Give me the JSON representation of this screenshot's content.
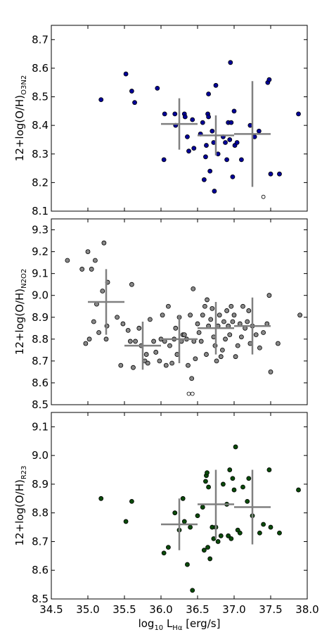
{
  "chart_data": [
    {
      "type": "scatter",
      "id": "panel-o3n2",
      "ylabel_main": "12+log(O/H)",
      "ylabel_sub": "O3N2",
      "xlim": [
        34.5,
        38.0
      ],
      "ylim": [
        8.1,
        8.75
      ],
      "yticks": [
        "8.1",
        "8.2",
        "8.3",
        "8.4",
        "8.5",
        "8.6",
        "8.7"
      ],
      "point_color": "#000099",
      "series": [
        {
          "name": "",
          "points": [
            [
              35.18,
              8.49
            ],
            [
              35.52,
              8.58
            ],
            [
              35.6,
              8.52
            ],
            [
              35.64,
              8.48
            ],
            [
              35.95,
              8.53
            ],
            [
              36.04,
              8.28
            ],
            [
              36.05,
              8.44
            ],
            [
              36.19,
              8.44
            ],
            [
              36.2,
              8.4
            ],
            [
              36.32,
              8.44
            ],
            [
              36.33,
              8.43
            ],
            [
              36.36,
              8.36
            ],
            [
              36.38,
              8.31
            ],
            [
              36.43,
              8.42
            ],
            [
              36.45,
              8.32
            ],
            [
              36.54,
              8.37
            ],
            [
              36.57,
              8.41
            ],
            [
              36.59,
              8.21
            ],
            [
              36.61,
              8.29
            ],
            [
              36.62,
              8.33
            ],
            [
              36.64,
              8.44
            ],
            [
              36.65,
              8.43
            ],
            [
              36.65,
              8.51
            ],
            [
              36.67,
              8.24
            ],
            [
              36.7,
              8.38
            ],
            [
              36.72,
              8.34
            ],
            [
              36.73,
              8.17
            ],
            [
              36.75,
              8.54
            ],
            [
              36.78,
              8.3
            ],
            [
              36.85,
              8.36
            ],
            [
              36.88,
              8.34
            ],
            [
              36.9,
              8.28
            ],
            [
              36.92,
              8.41
            ],
            [
              36.94,
              8.35
            ],
            [
              36.95,
              8.62
            ],
            [
              36.96,
              8.41
            ],
            [
              36.98,
              8.22
            ],
            [
              37.0,
              8.45
            ],
            [
              37.01,
              8.33
            ],
            [
              37.04,
              8.34
            ],
            [
              37.1,
              8.28
            ],
            [
              37.22,
              8.4
            ],
            [
              37.28,
              8.36
            ],
            [
              37.34,
              8.38
            ],
            [
              37.46,
              8.55
            ],
            [
              37.48,
              8.56
            ],
            [
              37.5,
              8.23
            ],
            [
              37.62,
              8.23
            ],
            [
              37.88,
              8.44
            ]
          ]
        }
      ],
      "open_points": [
        [
          37.4,
          8.15
        ]
      ],
      "errorbars": [
        {
          "x": 36.25,
          "y": 8.405,
          "xerr": 0.25,
          "yerr": 0.09
        },
        {
          "x": 36.75,
          "y": 8.365,
          "xerr": 0.25,
          "yerr": 0.07
        },
        {
          "x": 37.25,
          "y": 8.37,
          "xerr": 0.25,
          "yerr": 0.185
        }
      ]
    },
    {
      "type": "scatter",
      "id": "panel-n2o2",
      "ylabel_main": "12+log(O/H)",
      "ylabel_sub": "N2O2",
      "xlim": [
        34.5,
        38.0
      ],
      "ylim": [
        8.5,
        9.35
      ],
      "yticks": [
        "8.5",
        "8.6",
        "8.7",
        "8.8",
        "8.9",
        "9.0",
        "9.1",
        "9.2",
        "9.3"
      ],
      "point_color": "#888888",
      "series": [
        {
          "name": "",
          "points": [
            [
              34.72,
              9.16
            ],
            [
              34.92,
              9.12
            ],
            [
              34.97,
              8.78
            ],
            [
              35.0,
              9.2
            ],
            [
              35.02,
              8.8
            ],
            [
              35.05,
              9.12
            ],
            [
              35.08,
              8.88
            ],
            [
              35.1,
              9.16
            ],
            [
              35.12,
              8.96
            ],
            [
              35.15,
              8.83
            ],
            [
              35.2,
              9.02
            ],
            [
              35.22,
              9.24
            ],
            [
              35.25,
              8.8
            ],
            [
              35.26,
              8.86
            ],
            [
              35.27,
              9.06
            ],
            [
              35.4,
              8.9
            ],
            [
              35.45,
              8.68
            ],
            [
              35.48,
              8.87
            ],
            [
              35.55,
              8.84
            ],
            [
              35.58,
              8.79
            ],
            [
              35.6,
              9.05
            ],
            [
              35.62,
              8.67
            ],
            [
              35.65,
              8.79
            ],
            [
              35.7,
              8.85
            ],
            [
              35.73,
              8.77
            ],
            [
              35.78,
              8.7
            ],
            [
              35.8,
              8.73
            ],
            [
              35.82,
              8.69
            ],
            [
              35.85,
              8.89
            ],
            [
              35.9,
              8.79
            ],
            [
              35.93,
              8.74
            ],
            [
              35.98,
              8.7
            ],
            [
              36.0,
              8.8
            ],
            [
              36.02,
              8.91
            ],
            [
              36.05,
              8.79
            ],
            [
              36.07,
              8.68
            ],
            [
              36.1,
              8.95
            ],
            [
              36.12,
              8.77
            ],
            [
              36.15,
              8.69
            ],
            [
              36.18,
              8.8
            ],
            [
              36.2,
              8.85
            ],
            [
              36.22,
              8.73
            ],
            [
              36.25,
              8.9
            ],
            [
              36.28,
              8.79
            ],
            [
              36.3,
              8.82
            ],
            [
              36.32,
              8.82
            ],
            [
              36.35,
              8.8
            ],
            [
              36.37,
              8.68
            ],
            [
              36.4,
              8.91
            ],
            [
              36.42,
              8.62
            ],
            [
              36.44,
              9.03
            ],
            [
              36.45,
              8.79
            ],
            [
              36.47,
              8.71
            ],
            [
              36.5,
              8.87
            ],
            [
              36.52,
              8.83
            ],
            [
              36.55,
              8.79
            ],
            [
              36.57,
              8.91
            ],
            [
              36.6,
              8.95
            ],
            [
              36.62,
              8.73
            ],
            [
              36.63,
              8.98
            ],
            [
              36.65,
              8.86
            ],
            [
              36.68,
              8.89
            ],
            [
              36.7,
              8.94
            ],
            [
              36.72,
              8.81
            ],
            [
              36.74,
              8.77
            ],
            [
              36.76,
              8.7
            ],
            [
              36.78,
              8.86
            ],
            [
              36.8,
              8.91
            ],
            [
              36.82,
              8.72
            ],
            [
              36.84,
              8.75
            ],
            [
              36.86,
              8.88
            ],
            [
              36.88,
              8.8
            ],
            [
              36.9,
              8.93
            ],
            [
              36.92,
              8.86
            ],
            [
              36.94,
              8.82
            ],
            [
              36.96,
              8.95
            ],
            [
              36.98,
              8.88
            ],
            [
              37.0,
              8.91
            ],
            [
              37.02,
              8.72
            ],
            [
              37.05,
              8.77
            ],
            [
              37.08,
              8.87
            ],
            [
              37.1,
              8.81
            ],
            [
              37.12,
              8.95
            ],
            [
              37.15,
              8.85
            ],
            [
              37.18,
              8.88
            ],
            [
              37.2,
              8.93
            ],
            [
              37.22,
              8.78
            ],
            [
              37.25,
              8.86
            ],
            [
              37.3,
              8.82
            ],
            [
              37.35,
              8.76
            ],
            [
              37.4,
              8.83
            ],
            [
              37.45,
              8.87
            ],
            [
              37.48,
              9.0
            ],
            [
              37.5,
              8.65
            ],
            [
              37.6,
              8.78
            ],
            [
              37.9,
              8.91
            ]
          ]
        }
      ],
      "open_points": [
        [
          36.38,
          8.55
        ],
        [
          36.43,
          8.55
        ]
      ],
      "errorbars": [
        {
          "x": 35.25,
          "y": 8.97,
          "xerr": 0.25,
          "yerr": 0.15
        },
        {
          "x": 35.75,
          "y": 8.77,
          "xerr": 0.25,
          "yerr": 0.11
        },
        {
          "x": 36.25,
          "y": 8.8,
          "xerr": 0.25,
          "yerr": 0.11
        },
        {
          "x": 36.75,
          "y": 8.85,
          "xerr": 0.25,
          "yerr": 0.12
        },
        {
          "x": 37.25,
          "y": 8.86,
          "xerr": 0.25,
          "yerr": 0.13
        }
      ]
    },
    {
      "type": "scatter",
      "id": "panel-r23",
      "ylabel_main": "12+log(O/H)",
      "ylabel_sub": "R23",
      "xlabel_main": "log",
      "xlabel_sub1": "10",
      "xlabel_mid": " L",
      "xlabel_sub2": "Hα",
      "xlabel_tail": " [erg/s]",
      "xlim": [
        34.5,
        38.0
      ],
      "ylim": [
        8.5,
        9.15
      ],
      "xticks": [
        "34.5",
        "35.0",
        "35.5",
        "36.0",
        "36.5",
        "37.0",
        "37.5",
        "38.0"
      ],
      "yticks": [
        "8.5",
        "8.6",
        "8.7",
        "8.8",
        "8.9",
        "9.0",
        "9.1"
      ],
      "point_color": "#0a4a0a",
      "series": [
        {
          "name": "",
          "points": [
            [
              35.18,
              8.85
            ],
            [
              35.52,
              8.77
            ],
            [
              35.6,
              8.84
            ],
            [
              36.04,
              8.66
            ],
            [
              36.1,
              8.68
            ],
            [
              36.19,
              8.8
            ],
            [
              36.25,
              8.74
            ],
            [
              36.3,
              8.85
            ],
            [
              36.32,
              8.77
            ],
            [
              36.36,
              8.62
            ],
            [
              36.4,
              8.75
            ],
            [
              36.43,
              8.53
            ],
            [
              36.5,
              8.79
            ],
            [
              36.57,
              8.82
            ],
            [
              36.59,
              8.67
            ],
            [
              36.61,
              8.91
            ],
            [
              36.62,
              8.93
            ],
            [
              36.63,
              8.94
            ],
            [
              36.64,
              8.68
            ],
            [
              36.65,
              8.89
            ],
            [
              36.67,
              8.64
            ],
            [
              36.7,
              8.75
            ],
            [
              36.72,
              8.71
            ],
            [
              36.75,
              8.75
            ],
            [
              36.78,
              8.7
            ],
            [
              36.82,
              8.72
            ],
            [
              36.85,
              8.9
            ],
            [
              36.9,
              8.83
            ],
            [
              36.92,
              8.72
            ],
            [
              36.94,
              8.95
            ],
            [
              36.96,
              8.71
            ],
            [
              36.98,
              8.92
            ],
            [
              37.0,
              8.88
            ],
            [
              37.02,
              9.03
            ],
            [
              37.05,
              8.74
            ],
            [
              37.08,
              8.73
            ],
            [
              37.12,
              8.89
            ],
            [
              37.18,
              8.84
            ],
            [
              37.2,
              8.92
            ],
            [
              37.25,
              8.79
            ],
            [
              37.35,
              8.73
            ],
            [
              37.4,
              8.76
            ],
            [
              37.48,
              8.95
            ],
            [
              37.5,
              8.75
            ],
            [
              37.62,
              8.73
            ],
            [
              37.88,
              8.88
            ]
          ]
        }
      ],
      "open_points": [],
      "errorbars": [
        {
          "x": 36.25,
          "y": 8.76,
          "xerr": 0.25,
          "yerr": 0.09
        },
        {
          "x": 36.75,
          "y": 8.83,
          "xerr": 0.25,
          "yerr": 0.12
        },
        {
          "x": 37.25,
          "y": 8.82,
          "xerr": 0.25,
          "yerr": 0.13
        }
      ]
    }
  ]
}
